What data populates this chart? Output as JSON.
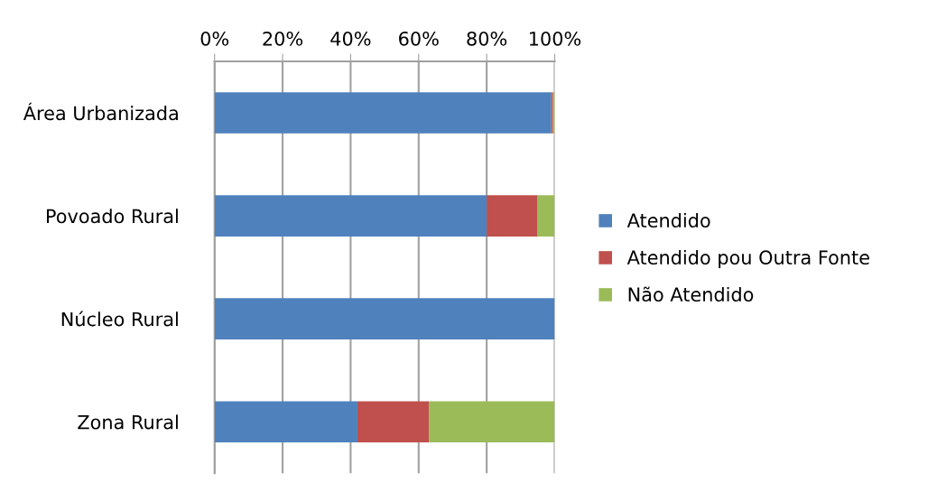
{
  "chart_data": {
    "type": "bar",
    "orientation": "horizontal",
    "stacked": true,
    "categories": [
      "Área Urbanizada",
      "Povoado Rural",
      "Núcleo Rural",
      "Zona Rural"
    ],
    "series": [
      {
        "name": "Atendido",
        "color": "#4f81bd",
        "values": [
          99,
          80,
          100,
          42
        ]
      },
      {
        "name": "Atendido pou Outra Fonte",
        "color": "#c0504d",
        "values": [
          0.5,
          15,
          0,
          21
        ]
      },
      {
        "name": "Não Atendido",
        "color": "#9bbb59",
        "values": [
          0.5,
          5,
          0,
          37
        ]
      }
    ],
    "xlim": [
      0,
      100
    ],
    "xticks": [
      {
        "value": 0,
        "label": "0%"
      },
      {
        "value": 20,
        "label": "20%"
      },
      {
        "value": 40,
        "label": "40%"
      },
      {
        "value": 60,
        "label": "60%"
      },
      {
        "value": 80,
        "label": "80%"
      },
      {
        "value": 100,
        "label": "100%"
      }
    ],
    "grid": "x",
    "legend": "right"
  }
}
